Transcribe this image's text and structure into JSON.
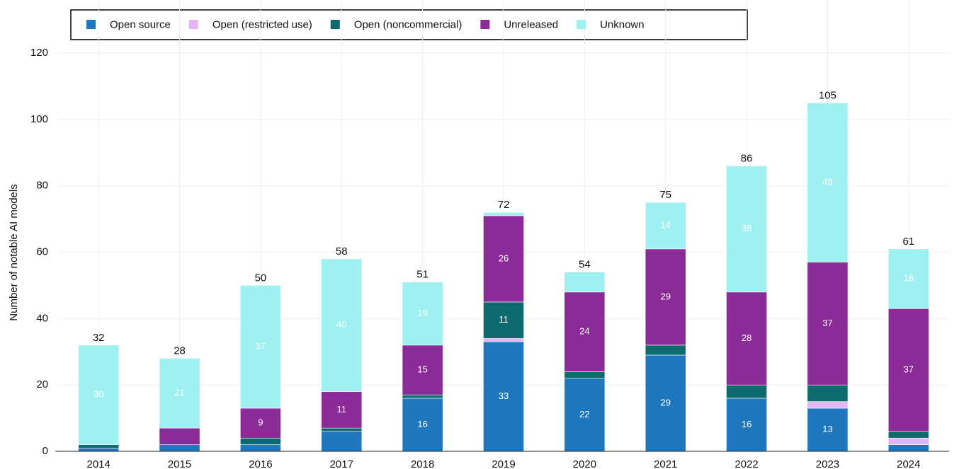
{
  "chart_data": {
    "type": "stacked_bar",
    "y_label": "Number of notable AI models",
    "categories": [
      "2014",
      "2015",
      "2016",
      "2017",
      "2018",
      "2019",
      "2020",
      "2021",
      "2022",
      "2023",
      "2024"
    ],
    "series": [
      {
        "name": "Open source",
        "color": "#1f78be",
        "values": [
          1,
          2,
          2,
          6,
          16,
          33,
          22,
          29,
          16,
          13,
          2
        ]
      },
      {
        "name": "Open (restricted use)",
        "color": "#e6b3f3",
        "values": [
          0,
          0,
          0,
          0,
          0,
          1,
          0,
          0,
          0,
          2,
          2
        ]
      },
      {
        "name": "Open (noncommercial)",
        "color": "#0e6b6d",
        "values": [
          1,
          0,
          2,
          1,
          1,
          11,
          2,
          3,
          4,
          5,
          2
        ]
      },
      {
        "name": "Unreleased",
        "color": "#8a2b97",
        "values": [
          0,
          5,
          9,
          11,
          15,
          26,
          24,
          29,
          28,
          37,
          37
        ]
      },
      {
        "name": "Unknown",
        "color": "#9ff0f1",
        "values": [
          30,
          21,
          37,
          40,
          19,
          1,
          6,
          14,
          38,
          48,
          18
        ]
      }
    ],
    "totals": [
      32,
      28,
      50,
      58,
      51,
      72,
      54,
      75,
      86,
      105,
      61
    ],
    "ylim": [
      0,
      136
    ],
    "yticks": [
      0,
      20,
      40,
      60,
      80,
      100,
      120
    ],
    "grid": true
  }
}
